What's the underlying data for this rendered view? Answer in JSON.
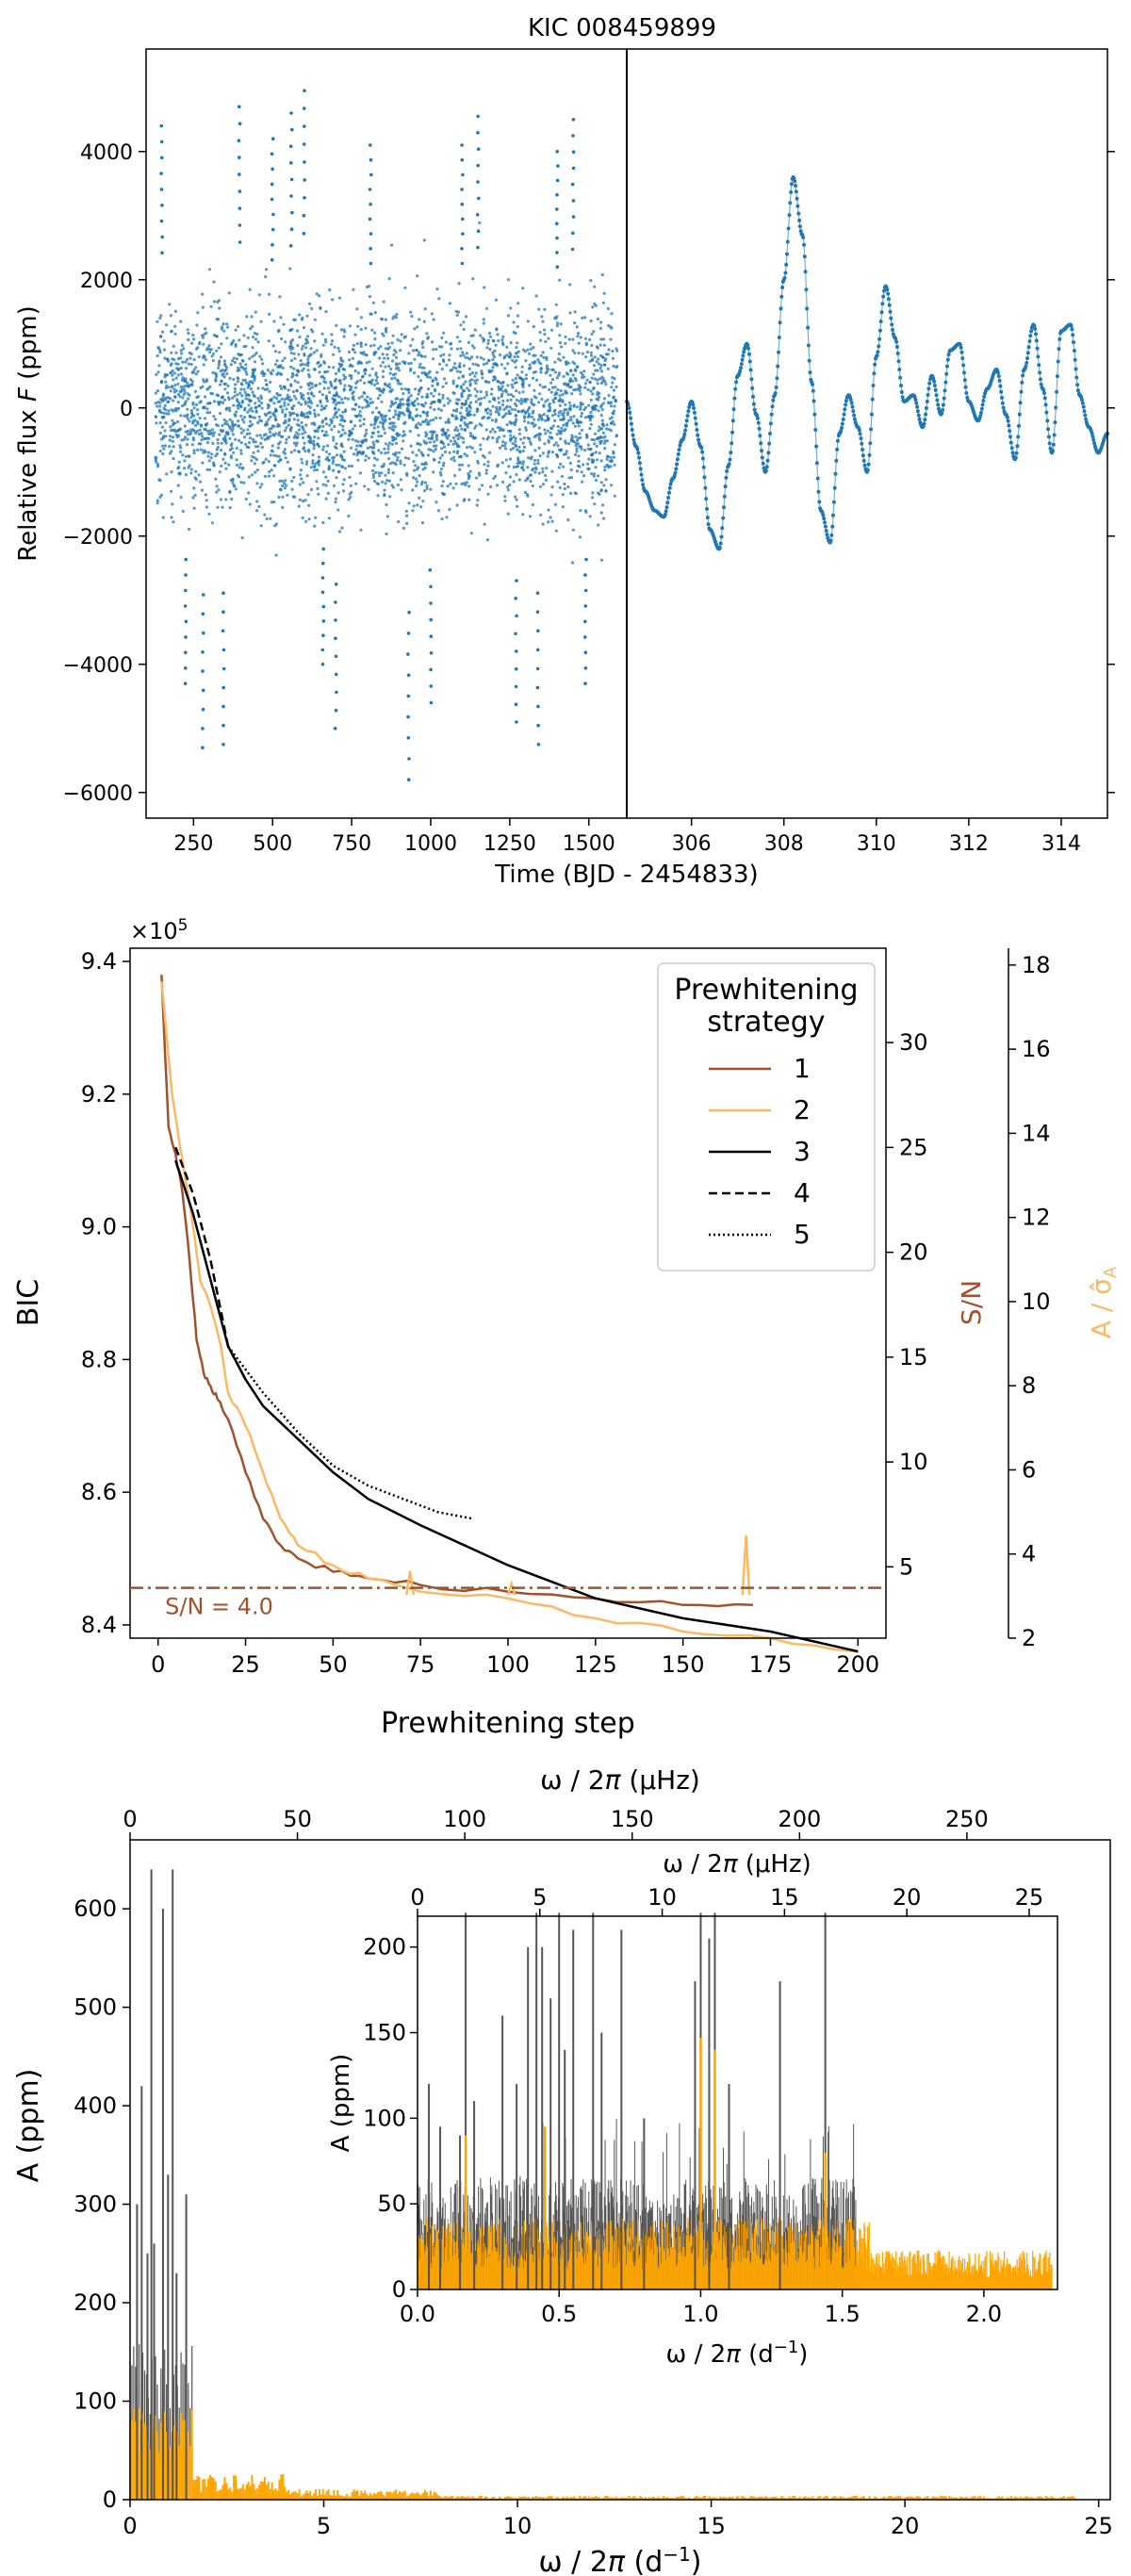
{
  "chart_data": [
    {
      "id": "lightcurve",
      "type": "scatter",
      "title": "KIC 008459899",
      "xlabel": "Time (BJD - 2454833)",
      "ylabel_prefix": "Relative flux ",
      "ylabel_var": "F",
      "ylabel_suffix": " (ppm)",
      "left_panel": {
        "xlim": [
          100,
          1620
        ],
        "ylim": [
          -6400,
          5600
        ],
        "xticks": [
          250,
          500,
          750,
          1000,
          1250,
          1500
        ],
        "yticks": [
          -6000,
          -4000,
          -2000,
          0,
          2000,
          4000
        ],
        "data_range": [
          130,
          1590
        ],
        "gap_at": 735,
        "spikes": [
          {
            "x": 150,
            "y": 4400
          },
          {
            "x": 225,
            "y": -4300
          },
          {
            "x": 280,
            "y": -5300
          },
          {
            "x": 345,
            "y": -5250
          },
          {
            "x": 395,
            "y": 4700
          },
          {
            "x": 500,
            "y": 4200
          },
          {
            "x": 560,
            "y": 4600
          },
          {
            "x": 600,
            "y": 4950
          },
          {
            "x": 660,
            "y": -4000
          },
          {
            "x": 700,
            "y": -5000
          },
          {
            "x": 810,
            "y": 4100
          },
          {
            "x": 930,
            "y": -5800
          },
          {
            "x": 1000,
            "y": -4600
          },
          {
            "x": 1100,
            "y": 4100
          },
          {
            "x": 1150,
            "y": 4550
          },
          {
            "x": 1270,
            "y": -4900
          },
          {
            "x": 1340,
            "y": -5250
          },
          {
            "x": 1450,
            "y": 4500
          },
          {
            "x": 1490,
            "y": -4300
          },
          {
            "x": 1400,
            "y": 4000
          }
        ]
      },
      "right_panel": {
        "xlim": [
          304.6,
          315.0
        ],
        "xticks": [
          306,
          308,
          310,
          312,
          314
        ],
        "x": [
          304.6,
          304.8,
          305.0,
          305.2,
          305.4,
          305.6,
          305.8,
          306.0,
          306.2,
          306.4,
          306.6,
          306.8,
          307.0,
          307.2,
          307.4,
          307.6,
          307.8,
          308.0,
          308.2,
          308.4,
          308.6,
          308.8,
          309.0,
          309.2,
          309.4,
          309.6,
          309.8,
          310.0,
          310.2,
          310.4,
          310.6,
          310.8,
          311.0,
          311.2,
          311.4,
          311.6,
          311.8,
          312.0,
          312.2,
          312.4,
          312.6,
          312.8,
          313.0,
          313.2,
          313.4,
          313.6,
          313.8,
          314.0,
          314.2,
          314.4,
          314.6,
          314.8,
          315.0
        ],
        "y": [
          100,
          -600,
          -1300,
          -1600,
          -1700,
          -1100,
          -500,
          100,
          -600,
          -1900,
          -2200,
          -900,
          500,
          1000,
          -100,
          -1000,
          200,
          2000,
          3600,
          2700,
          400,
          -1600,
          -2100,
          -400,
          200,
          -300,
          -1000,
          800,
          1900,
          1100,
          100,
          200,
          -300,
          500,
          -100,
          900,
          1000,
          100,
          -200,
          300,
          600,
          -100,
          -800,
          600,
          1300,
          300,
          -700,
          1200,
          1300,
          200,
          -300,
          -700,
          -400
        ]
      },
      "color": "#1f77b4"
    },
    {
      "id": "bic",
      "type": "line",
      "xlabel": "Prewhitening step",
      "ylabel": "BIC",
      "ylabel_sn": "S/N",
      "ylabel_asig": "A / σ̂",
      "ylabel_asig_sub": "A",
      "scale_note": "×10",
      "scale_exp": "5",
      "xlim": [
        -8,
        208
      ],
      "ylim": [
        8.38,
        9.42
      ],
      "xticks": [
        0,
        25,
        50,
        75,
        100,
        125,
        150,
        175,
        200
      ],
      "yticks": [
        8.4,
        8.6,
        8.8,
        9.0,
        9.2,
        9.4
      ],
      "sn_lim": [
        1.6,
        34.5
      ],
      "sn_ticks": [
        5,
        10,
        15,
        20,
        25,
        30
      ],
      "asig_lim": [
        2.0,
        18.4
      ],
      "asig_ticks": [
        2,
        4,
        6,
        8,
        10,
        12,
        14,
        16,
        18
      ],
      "threshold_label": "S/N = 4.0",
      "threshold_sn": 4.0,
      "legend_title_line1": "Prewhitening",
      "legend_title_line2": "strategy",
      "legend_position": "top-right",
      "series": [
        {
          "name": "1",
          "color": "#a0522d",
          "dash": "",
          "x": [
            1,
            3,
            5,
            7,
            9,
            11,
            13,
            15,
            17,
            20,
            25,
            30,
            35,
            40,
            50,
            60,
            75,
            100,
            125,
            150,
            170
          ],
          "y": [
            9.38,
            9.15,
            9.11,
            9.05,
            8.95,
            8.83,
            8.78,
            8.76,
            8.74,
            8.71,
            8.63,
            8.56,
            8.52,
            8.5,
            8.48,
            8.47,
            8.46,
            8.45,
            8.44,
            8.43,
            8.43
          ]
        },
        {
          "name": "2",
          "color": "#fdb863",
          "dash": "",
          "x": [
            1,
            4,
            7,
            10,
            12,
            15,
            18,
            20,
            25,
            30,
            35,
            40,
            50,
            60,
            75,
            100,
            125,
            150,
            175,
            200
          ],
          "y": [
            9.37,
            9.2,
            9.1,
            9.0,
            8.92,
            8.88,
            8.82,
            8.75,
            8.7,
            8.63,
            8.56,
            8.52,
            8.49,
            8.47,
            8.45,
            8.44,
            8.41,
            8.39,
            8.38,
            8.36
          ]
        },
        {
          "name": "3",
          "color": "#000000",
          "dash": "",
          "x": [
            5,
            10,
            15,
            20,
            25,
            30,
            40,
            50,
            60,
            75,
            100,
            125,
            150,
            175,
            200
          ],
          "y": [
            9.1,
            9.02,
            8.92,
            8.82,
            8.77,
            8.73,
            8.68,
            8.63,
            8.59,
            8.55,
            8.49,
            8.44,
            8.41,
            8.39,
            8.36
          ]
        },
        {
          "name": "4",
          "color": "#000000",
          "dash": "9,5",
          "x": [
            5,
            10,
            15,
            20,
            25
          ],
          "y": [
            9.12,
            9.05,
            8.95,
            8.82,
            8.77
          ]
        },
        {
          "name": "5",
          "color": "#000000",
          "dash": "2,3",
          "x": [
            20,
            30,
            40,
            50,
            60,
            70,
            80,
            90
          ],
          "y": [
            8.82,
            8.75,
            8.69,
            8.64,
            8.61,
            8.59,
            8.57,
            8.56
          ]
        }
      ],
      "sn_spikes_series2": [
        {
          "x": 72,
          "y": 4.8
        },
        {
          "x": 101,
          "y": 4.2
        },
        {
          "x": 168,
          "y": 6.5
        }
      ]
    },
    {
      "id": "periodogram",
      "type": "bar",
      "xlabel_prefix": "ω / 2",
      "xlabel_var": "π",
      "xlabel_suffix": " (d",
      "xlabel_exp": "−1",
      "xlabel_close": ")",
      "xlabel_top_prefix": "ω / 2",
      "xlabel_top_var": "π",
      "xlabel_top_suffix": " (μHz)",
      "ylabel": "A (ppm)",
      "xlim": [
        0,
        25.3
      ],
      "ylim": [
        0,
        670
      ],
      "xticks": [
        0,
        5,
        10,
        15,
        20,
        25
      ],
      "xticks_top": [
        0,
        50,
        100,
        150,
        200,
        250
      ],
      "yticks": [
        0,
        100,
        200,
        300,
        400,
        500,
        600
      ],
      "series_colors": {
        "original": "#555555",
        "residual": "#ffa500"
      },
      "peaks_black": [
        {
          "f": 0.18,
          "a": 300
        },
        {
          "f": 0.3,
          "a": 420
        },
        {
          "f": 0.45,
          "a": 250
        },
        {
          "f": 0.55,
          "a": 640
        },
        {
          "f": 0.62,
          "a": 260
        },
        {
          "f": 0.85,
          "a": 600
        },
        {
          "f": 0.98,
          "a": 330
        },
        {
          "f": 1.1,
          "a": 640
        },
        {
          "f": 1.2,
          "a": 230
        },
        {
          "f": 1.45,
          "a": 310
        }
      ],
      "inset": {
        "xlabel_prefix": "ω / 2",
        "xlabel_var": "π",
        "xlabel_suffix": " (d",
        "xlabel_exp": "−1",
        "xlabel_close": ")",
        "xlabel_top_prefix": "ω / 2",
        "xlabel_top_var": "π",
        "xlabel_top_suffix": " (μHz)",
        "ylabel": "A (ppm)",
        "xlim": [
          0,
          2.26
        ],
        "ylim": [
          0,
          218
        ],
        "xticks": [
          0.0,
          0.5,
          1.0,
          1.5,
          2.0
        ],
        "xtick_labels": [
          "0.0",
          "0.5",
          "1.0",
          "1.5",
          "2.0"
        ],
        "xticks_top": [
          0,
          5,
          10,
          15,
          20,
          25
        ],
        "yticks": [
          0,
          50,
          100,
          150,
          200
        ],
        "peaks_black": [
          {
            "f": 0.04,
            "a": 120
          },
          {
            "f": 0.08,
            "a": 95
          },
          {
            "f": 0.15,
            "a": 90
          },
          {
            "f": 0.17,
            "a": 220
          },
          {
            "f": 0.2,
            "a": 110
          },
          {
            "f": 0.3,
            "a": 160
          },
          {
            "f": 0.35,
            "a": 120
          },
          {
            "f": 0.39,
            "a": 200
          },
          {
            "f": 0.42,
            "a": 220
          },
          {
            "f": 0.44,
            "a": 200
          },
          {
            "f": 0.47,
            "a": 170
          },
          {
            "f": 0.5,
            "a": 220
          },
          {
            "f": 0.52,
            "a": 140
          },
          {
            "f": 0.55,
            "a": 210
          },
          {
            "f": 0.62,
            "a": 220
          },
          {
            "f": 0.65,
            "a": 150
          },
          {
            "f": 0.72,
            "a": 210
          },
          {
            "f": 0.8,
            "a": 100
          },
          {
            "f": 0.98,
            "a": 180
          },
          {
            "f": 1.0,
            "a": 220
          },
          {
            "f": 1.03,
            "a": 205
          },
          {
            "f": 1.05,
            "a": 220
          },
          {
            "f": 1.1,
            "a": 120
          },
          {
            "f": 1.28,
            "a": 180
          },
          {
            "f": 1.44,
            "a": 220
          }
        ],
        "peaks_orange": [
          {
            "f": 1.0,
            "a": 147
          },
          {
            "f": 1.05,
            "a": 140
          },
          {
            "f": 1.44,
            "a": 80
          },
          {
            "f": 0.45,
            "a": 95
          },
          {
            "f": 0.17,
            "a": 90
          }
        ]
      }
    }
  ]
}
